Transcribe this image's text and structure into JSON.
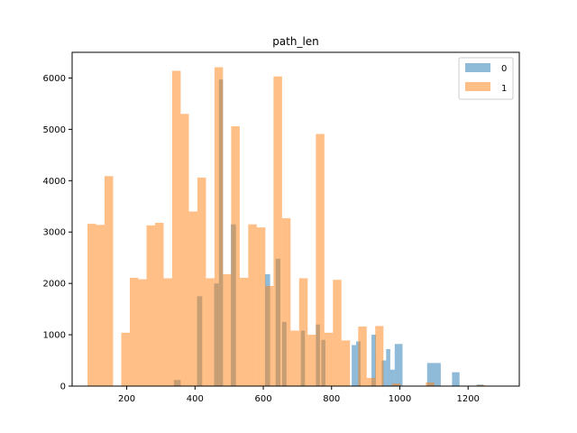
{
  "chart_data": {
    "type": "bar",
    "subtype": "overlapping-histogram",
    "title": "path_len",
    "xlabel": "",
    "ylabel": "",
    "xlim": [
      40,
      1350
    ],
    "ylim": [
      0,
      6500
    ],
    "x_ticks": [
      200,
      400,
      600,
      800,
      1000,
      1200
    ],
    "y_ticks": [
      0,
      1000,
      2000,
      3000,
      4000,
      5000,
      6000
    ],
    "grid": false,
    "legend_position": "top-right",
    "bin_width": 24.8,
    "series": [
      {
        "name": "0",
        "color": "#1f77b4",
        "alpha": 0.5,
        "bins": [
          {
            "x0": 338,
            "x1": 358,
            "y": 120
          },
          {
            "x0": 406,
            "x1": 421,
            "y": 1750
          },
          {
            "x0": 456,
            "x1": 470,
            "y": 2000
          },
          {
            "x0": 470,
            "x1": 482,
            "y": 5970
          },
          {
            "x0": 505,
            "x1": 520,
            "y": 3150
          },
          {
            "x0": 605,
            "x1": 620,
            "y": 2180
          },
          {
            "x0": 636,
            "x1": 650,
            "y": 2480
          },
          {
            "x0": 655,
            "x1": 668,
            "y": 1250
          },
          {
            "x0": 710,
            "x1": 722,
            "y": 1080
          },
          {
            "x0": 754,
            "x1": 766,
            "y": 1200
          },
          {
            "x0": 770,
            "x1": 782,
            "y": 900
          },
          {
            "x0": 859,
            "x1": 872,
            "y": 800
          },
          {
            "x0": 872,
            "x1": 885,
            "y": 870
          },
          {
            "x0": 917,
            "x1": 930,
            "y": 1000
          },
          {
            "x0": 947,
            "x1": 960,
            "y": 500
          },
          {
            "x0": 960,
            "x1": 972,
            "y": 720
          },
          {
            "x0": 972,
            "x1": 985,
            "y": 320
          },
          {
            "x0": 985,
            "x1": 1008,
            "y": 820
          },
          {
            "x0": 1080,
            "x1": 1120,
            "y": 450
          },
          {
            "x0": 1153,
            "x1": 1175,
            "y": 270
          },
          {
            "x0": 1225,
            "x1": 1245,
            "y": 30
          }
        ]
      },
      {
        "name": "1",
        "color": "#ff7f0e",
        "alpha": 0.5,
        "bins": [
          {
            "x0": 85,
            "x1": 110,
            "y": 3160
          },
          {
            "x0": 110,
            "x1": 135,
            "y": 3140
          },
          {
            "x0": 135,
            "x1": 160,
            "y": 4090
          },
          {
            "x0": 184,
            "x1": 209,
            "y": 1040
          },
          {
            "x0": 209,
            "x1": 234,
            "y": 2110
          },
          {
            "x0": 234,
            "x1": 258,
            "y": 2080
          },
          {
            "x0": 258,
            "x1": 283,
            "y": 3130
          },
          {
            "x0": 283,
            "x1": 308,
            "y": 3180
          },
          {
            "x0": 308,
            "x1": 333,
            "y": 2100
          },
          {
            "x0": 333,
            "x1": 358,
            "y": 6140
          },
          {
            "x0": 358,
            "x1": 382,
            "y": 5300
          },
          {
            "x0": 382,
            "x1": 407,
            "y": 3400
          },
          {
            "x0": 407,
            "x1": 432,
            "y": 4060
          },
          {
            "x0": 432,
            "x1": 457,
            "y": 2100
          },
          {
            "x0": 457,
            "x1": 482,
            "y": 6210
          },
          {
            "x0": 482,
            "x1": 506,
            "y": 2180
          },
          {
            "x0": 506,
            "x1": 531,
            "y": 5060
          },
          {
            "x0": 531,
            "x1": 556,
            "y": 2110
          },
          {
            "x0": 556,
            "x1": 581,
            "y": 3150
          },
          {
            "x0": 581,
            "x1": 606,
            "y": 3090
          },
          {
            "x0": 606,
            "x1": 630,
            "y": 1950
          },
          {
            "x0": 630,
            "x1": 655,
            "y": 6030
          },
          {
            "x0": 655,
            "x1": 680,
            "y": 3270
          },
          {
            "x0": 680,
            "x1": 705,
            "y": 1080
          },
          {
            "x0": 705,
            "x1": 730,
            "y": 2100
          },
          {
            "x0": 730,
            "x1": 754,
            "y": 1000
          },
          {
            "x0": 754,
            "x1": 779,
            "y": 4910
          },
          {
            "x0": 779,
            "x1": 804,
            "y": 1040
          },
          {
            "x0": 804,
            "x1": 829,
            "y": 2070
          },
          {
            "x0": 829,
            "x1": 854,
            "y": 890
          },
          {
            "x0": 878,
            "x1": 903,
            "y": 1160
          },
          {
            "x0": 903,
            "x1": 928,
            "y": 160
          },
          {
            "x0": 928,
            "x1": 952,
            "y": 1170
          },
          {
            "x0": 977,
            "x1": 1002,
            "y": 50
          },
          {
            "x0": 1076,
            "x1": 1101,
            "y": 70
          },
          {
            "x0": 1225,
            "x1": 1250,
            "y": 20
          }
        ]
      }
    ]
  }
}
